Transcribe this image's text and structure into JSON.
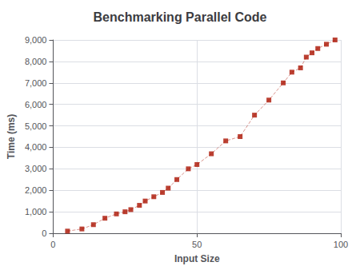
{
  "chart_data": {
    "type": "scatter",
    "title": "Benchmarking Parallel Code",
    "xlabel": "Input Size",
    "ylabel": "Time (ms)",
    "x": [
      5,
      10,
      14,
      18,
      22,
      25,
      27,
      30,
      32,
      35,
      38,
      40,
      43,
      47,
      50,
      55,
      60,
      65,
      70,
      75,
      80,
      83,
      86,
      88,
      90,
      92,
      95,
      98
    ],
    "values": [
      100,
      200,
      400,
      700,
      900,
      1000,
      1100,
      1300,
      1500,
      1700,
      1900,
      2100,
      2500,
      3000,
      3200,
      3700,
      4300,
      4500,
      5500,
      6200,
      7000,
      7500,
      7700,
      8200,
      8400,
      8600,
      8800,
      9000
    ],
    "color": "#aa1100",
    "marker": "square",
    "line_style": "dashed",
    "xlim": [
      0,
      100
    ],
    "ylim": [
      0,
      9000
    ],
    "xticks": [
      0,
      50,
      100
    ],
    "yticks": [
      0,
      1000,
      2000,
      3000,
      4000,
      5000,
      6000,
      7000,
      8000,
      9000
    ],
    "grid": true
  }
}
